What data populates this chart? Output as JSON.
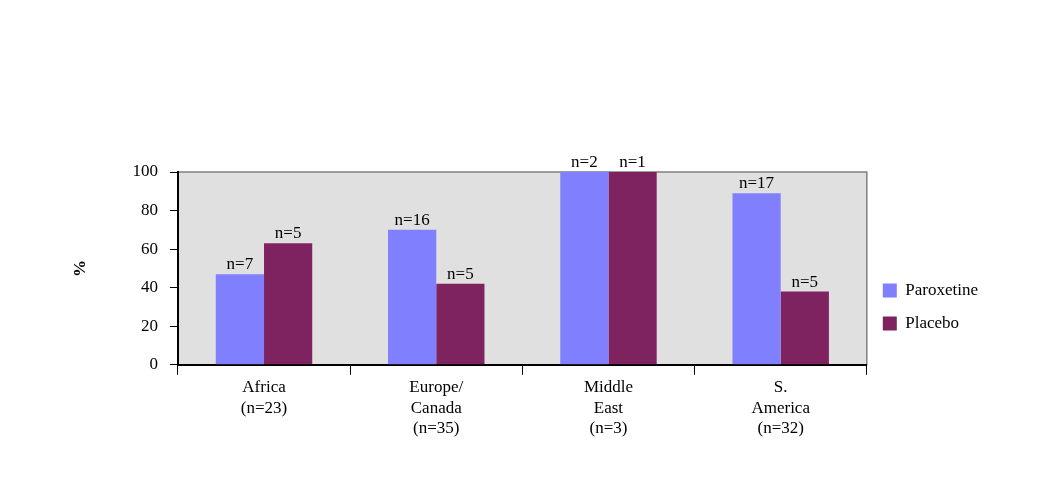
{
  "chart_data": {
    "type": "bar",
    "ylabel": "%",
    "categories": [
      "Africa\n(n=23)",
      "Europe/\nCanada\n(n=35)",
      "Middle\nEast\n(n=3)",
      "S.\nAmerica\n(n=32)"
    ],
    "series": [
      {
        "name": "Paroxetine",
        "color": "#8080ff",
        "values": [
          47,
          70,
          100,
          89
        ]
      },
      {
        "name": "Placebo",
        "color": "#7f2360",
        "values": [
          63,
          42,
          100,
          38
        ]
      }
    ],
    "annotations": [
      {
        "text": "n=7",
        "x": "Africa\n(n=23)",
        "y": 47
      },
      {
        "text": "n=5",
        "x": "Africa\n(n=23)",
        "y": 63
      },
      {
        "text": "n=16",
        "x": "Europe/\nCanada\n(n=35)",
        "y": 70
      },
      {
        "text": "n=5",
        "x": "Europe/\nCanada\n(n=35)",
        "y": 42
      },
      {
        "text": "n=2",
        "x": "Middle\nEast\n(n=3)",
        "y": 100
      },
      {
        "text": "n=1",
        "x": "Middle\nEast\n(n=3)",
        "y": 100
      },
      {
        "text": "n=17",
        "x": "S.\nAmerica\n(n=32)",
        "y": 89
      },
      {
        "text": "n=5",
        "x": "S.\nAmerica\n(n=32)",
        "y": 38
      }
    ],
    "ylim": [
      0,
      100
    ],
    "yticks": [
      0,
      20,
      40,
      60,
      80,
      100
    ],
    "grid": false,
    "legend": "right"
  }
}
